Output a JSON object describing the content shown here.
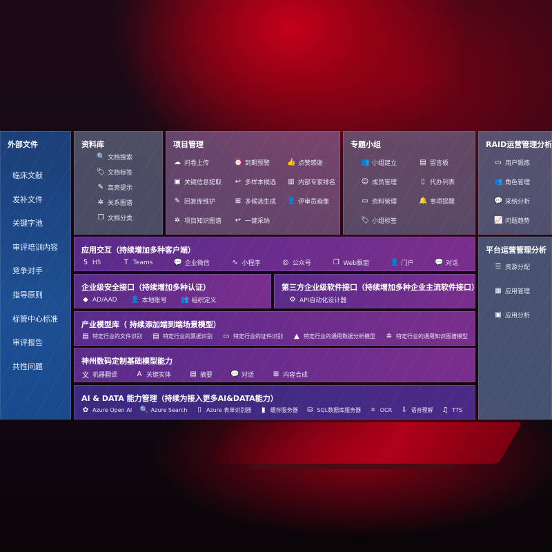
{
  "external_files": {
    "title": "外部文件",
    "items": [
      "临床文献",
      "发补文件",
      "关键字池",
      "审评培训内容",
      "竞争对手",
      "指导原则",
      "标管中心标准",
      "审评报告",
      "共性问题"
    ]
  },
  "library": {
    "title": "资料库",
    "items": [
      {
        "icon": "document-search-icon",
        "label": "文档搜索"
      },
      {
        "icon": "tag-icon",
        "label": "文档标签"
      },
      {
        "icon": "highlight-pen-icon",
        "label": "高亮提示"
      },
      {
        "icon": "graph-icon",
        "label": "关系图谱"
      },
      {
        "icon": "document-classify-icon",
        "label": "文档分类"
      }
    ]
  },
  "project": {
    "title": "项目管理",
    "items": [
      {
        "icon": "cloud-upload-icon",
        "label": "问卷上传"
      },
      {
        "icon": "alarm-icon",
        "label": "到期预警"
      },
      {
        "icon": "thumbs-up-icon",
        "label": "点赞感谢"
      },
      {
        "icon": "extract-icon",
        "label": "关键信息提取"
      },
      {
        "icon": "reply-icon",
        "label": "多样本候选"
      },
      {
        "icon": "ranking-icon",
        "label": "内部专家排名"
      },
      {
        "icon": "edit-icon",
        "label": "回复库维护"
      },
      {
        "icon": "puzzle-icon",
        "label": "多候选生成"
      },
      {
        "icon": "user-icon",
        "label": "评审员画像"
      },
      {
        "icon": "graph-icon",
        "label": "项目知识图谱"
      },
      {
        "icon": "reply-icon",
        "label": "一键采纳"
      }
    ]
  },
  "group": {
    "title": "专题小组",
    "items": [
      {
        "icon": "group-icon",
        "label": "小组建立"
      },
      {
        "icon": "bbs-icon",
        "label": "留言板"
      },
      {
        "icon": "add-user-icon",
        "label": "成员管理"
      },
      {
        "icon": "clipboard-icon",
        "label": "代办列表"
      },
      {
        "icon": "folder-icon",
        "label": "资料管理"
      },
      {
        "icon": "bell-icon",
        "label": "事项提醒"
      },
      {
        "icon": "tag-icon",
        "label": "小组标签"
      }
    ]
  },
  "raid": {
    "title": "RAID运营管理分析",
    "items": [
      {
        "icon": "id-card-icon",
        "label": "用户锻炼"
      },
      {
        "icon": "group-icon",
        "label": "角色管理"
      },
      {
        "icon": "qa-icon",
        "label": "采纳分析"
      },
      {
        "icon": "trend-icon",
        "label": "问题趋势"
      }
    ]
  },
  "platform": {
    "title": "平台运营管理分析",
    "items": [
      {
        "icon": "checklist-icon",
        "label": "资源分配"
      },
      {
        "icon": "apps-icon",
        "label": "应用管理"
      },
      {
        "icon": "analysis-icon",
        "label": "应用分析"
      }
    ]
  },
  "app_interaction": {
    "title": "应用交互（持续增加多种客户端）",
    "items": [
      {
        "icon": "html5-icon",
        "label": "H5"
      },
      {
        "icon": "teams-icon",
        "label": "Teams"
      },
      {
        "icon": "wechat-work-icon",
        "label": "企业微信"
      },
      {
        "icon": "mini-program-icon",
        "label": "小程序"
      },
      {
        "icon": "official-account-icon",
        "label": "公众号"
      },
      {
        "icon": "window-icon",
        "label": "Web飘窗"
      },
      {
        "icon": "portal-icon",
        "label": "门户"
      },
      {
        "icon": "chat-icon",
        "label": "对话"
      }
    ]
  },
  "security": {
    "title": "企业级安全接口（持续增加多种认证）",
    "items": [
      {
        "icon": "azure-ad-icon",
        "label": "AD/AAD"
      },
      {
        "icon": "user-icon",
        "label": "本地账号"
      },
      {
        "icon": "organization-icon",
        "label": "组织定义"
      }
    ]
  },
  "third_party": {
    "title": "第三方企业级软件接口（持续增加多种企业主流软件接口）",
    "items": [
      {
        "icon": "api-gear-icon",
        "label": "API自动化设计器"
      }
    ]
  },
  "industry": {
    "title": "产业模型库（ 持续添加端到端场景模型）",
    "items": [
      {
        "icon": "file-icon",
        "label": "特定行业的文件识别"
      },
      {
        "icon": "receipt-icon",
        "label": "特定行业的票据识别"
      },
      {
        "icon": "id-card-icon",
        "label": "特定行业的证件识别"
      },
      {
        "icon": "chart-icon",
        "label": "特定行业的通用数据分析模型"
      },
      {
        "icon": "graph-icon",
        "label": "特定行业的通用知识图谱模型"
      }
    ]
  },
  "base_model": {
    "title": "神州数码定制基础模型能力",
    "items": [
      {
        "icon": "translate-icon",
        "label": "机器翻译"
      },
      {
        "icon": "entity-icon",
        "label": "关键实体"
      },
      {
        "icon": "summary-icon",
        "label": "摘要"
      },
      {
        "icon": "chat-icon",
        "label": "对话"
      },
      {
        "icon": "puzzle-icon",
        "label": "内容合成"
      }
    ]
  },
  "ai_data": {
    "title": "AI & DATA 能力管理（持续为接入更多AI&DATA能力）",
    "items": [
      {
        "icon": "openai-icon",
        "label": "Azure Open AI"
      },
      {
        "icon": "search-icon",
        "label": "Azure Search"
      },
      {
        "icon": "form-recognizer-icon",
        "label": "Azure 表单识别器"
      },
      {
        "icon": "cache-server-icon",
        "label": "缓存服务器"
      },
      {
        "icon": "sql-database-icon",
        "label": "SQL数据库服务器"
      },
      {
        "icon": "ocr-icon",
        "label": "OCR"
      },
      {
        "icon": "speech-icon",
        "label": "语音理解"
      },
      {
        "icon": "tts-icon",
        "label": "TTS"
      }
    ]
  }
}
